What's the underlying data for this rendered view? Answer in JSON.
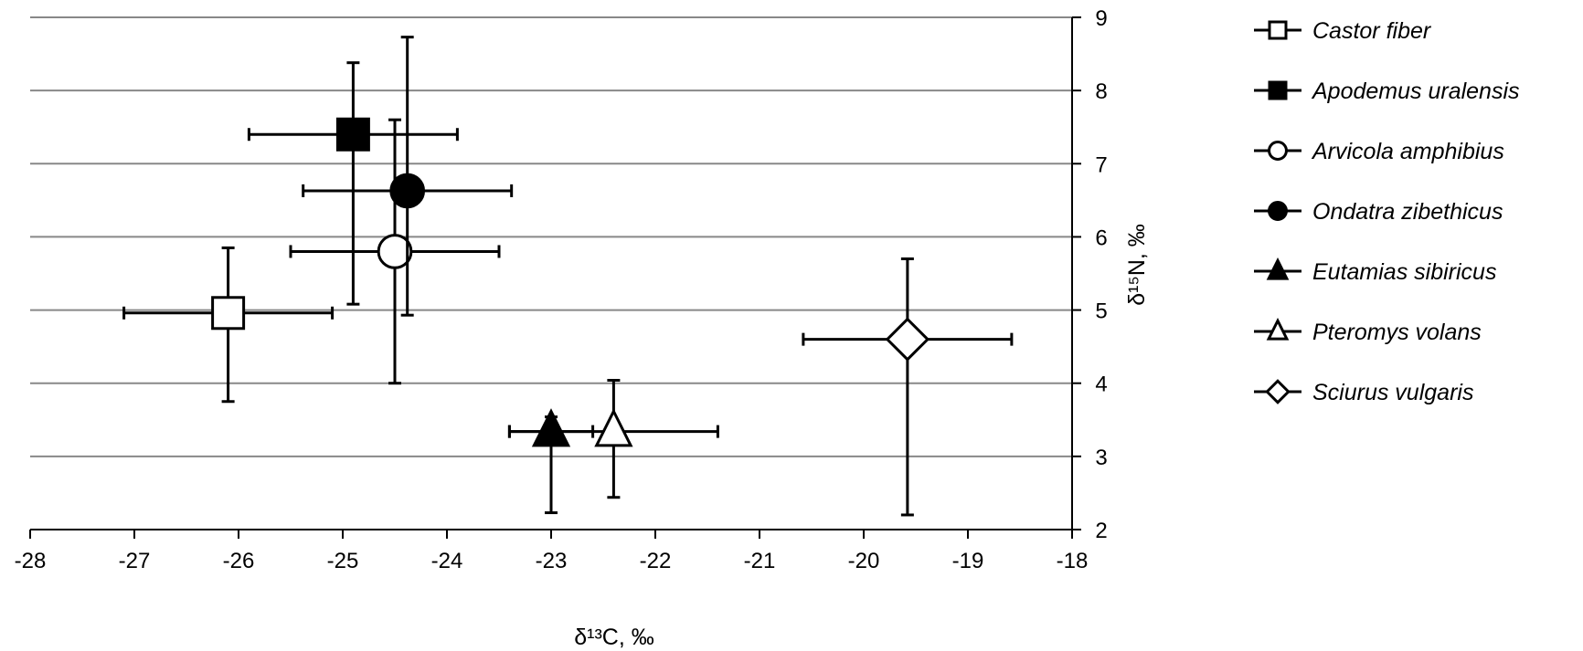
{
  "chart_data": {
    "type": "scatter",
    "title": "",
    "xlabel": "δ¹³C, ‰",
    "ylabel": "δ¹⁵N, ‰",
    "xlim": [
      -28,
      -18
    ],
    "ylim": [
      2,
      9
    ],
    "xticks": [
      "-28",
      "-27",
      "-26",
      "-25",
      "-24",
      "-23",
      "-22",
      "-21",
      "-20",
      "-19",
      "-18"
    ],
    "yticks": [
      "2",
      "3",
      "4",
      "5",
      "6",
      "7",
      "8",
      "9"
    ],
    "grid": "horizontal",
    "legend_position": "right",
    "series": [
      {
        "name": "Castor fiber",
        "marker": "square",
        "fill": "#ffffff",
        "x": -26.1,
        "y": 4.96,
        "x_range": [
          -27.1,
          -25.1
        ],
        "y_range": [
          3.75,
          5.85
        ]
      },
      {
        "name": "Apodemus uralensis",
        "marker": "square",
        "fill": "#000000",
        "x": -24.9,
        "y": 7.4,
        "x_range": [
          -25.9,
          -23.9
        ],
        "y_range": [
          5.08,
          8.38
        ]
      },
      {
        "name": "Arvicola amphibius",
        "marker": "circle",
        "fill": "#ffffff",
        "x": -24.5,
        "y": 5.8,
        "x_range": [
          -25.5,
          -23.5
        ],
        "y_range": [
          4.0,
          7.6
        ]
      },
      {
        "name": "Ondatra zibethicus",
        "marker": "circle",
        "fill": "#000000",
        "x": -24.38,
        "y": 6.63,
        "x_range": [
          -25.38,
          -23.38
        ],
        "y_range": [
          4.93,
          8.73
        ]
      },
      {
        "name": "Eutamias sibiricus",
        "marker": "triangle",
        "fill": "#000000",
        "x": -23.0,
        "y": 3.34,
        "x_range": [
          -23.4,
          -22.6
        ],
        "y_range": [
          2.23,
          3.54
        ]
      },
      {
        "name": "Pteromys volans",
        "marker": "triangle",
        "fill": "#ffffff",
        "x": -22.4,
        "y": 3.34,
        "x_range": [
          -23.4,
          -21.4
        ],
        "y_range": [
          2.44,
          4.04
        ]
      },
      {
        "name": "Sciurus vulgaris",
        "marker": "diamond",
        "fill": "#ffffff",
        "x": -19.58,
        "y": 4.6,
        "x_range": [
          -20.58,
          -18.58
        ],
        "y_range": [
          2.2,
          5.7
        ]
      }
    ]
  }
}
